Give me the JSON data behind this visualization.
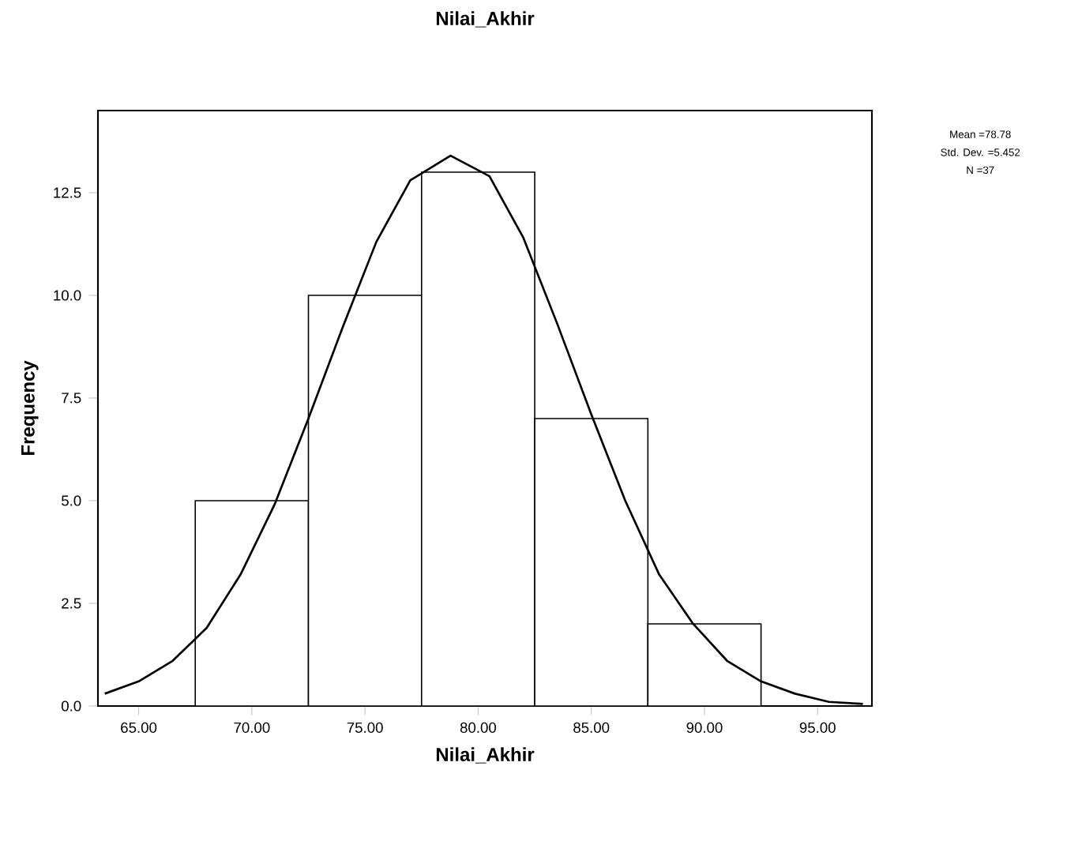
{
  "chart_data": {
    "type": "histogram",
    "title": "Nilai_Akhir",
    "xlabel": "Nilai_Akhir",
    "ylabel": "Frequency",
    "bins": [
      67.5,
      72.5,
      77.5,
      82.5,
      87.5,
      92.5
    ],
    "values": [
      5,
      10,
      13,
      7,
      2
    ],
    "color": "#ffffff",
    "series": [
      {
        "type": "line",
        "color": "#000000",
        "x": [
          63.5,
          65,
          66.5,
          68,
          69.5,
          71,
          72.5,
          74,
          75.5,
          77,
          78.78,
          80.5,
          82,
          83.5,
          85,
          86.5,
          88,
          89.5,
          91,
          92.5,
          94,
          95.5,
          97
        ],
        "values": [
          0.3,
          0.6,
          1.1,
          1.9,
          3.2,
          4.9,
          7.0,
          9.2,
          11.3,
          12.8,
          13.4,
          12.9,
          11.4,
          9.3,
          7.1,
          5.0,
          3.2,
          2.0,
          1.1,
          0.6,
          0.3,
          0.1,
          0.05
        ]
      }
    ],
    "xlim": [
      63.2,
      97.4
    ],
    "ylim": [
      0,
      14.5
    ],
    "xticks": [
      {
        "value": 65,
        "label": "65.00"
      },
      {
        "value": 70,
        "label": "70.00"
      },
      {
        "value": 75,
        "label": "75.00"
      },
      {
        "value": 80,
        "label": "80.00"
      },
      {
        "value": 85,
        "label": "85.00"
      },
      {
        "value": 90,
        "label": "90.00"
      },
      {
        "value": 95,
        "label": "95.00"
      }
    ],
    "yticks": [
      {
        "value": 0,
        "label": "0.0"
      },
      {
        "value": 2.5,
        "label": "2.5"
      },
      {
        "value": 5,
        "label": "5.0"
      },
      {
        "value": 7.5,
        "label": "7.5"
      },
      {
        "value": 10,
        "label": "10.0"
      },
      {
        "value": 12.5,
        "label": "12.5"
      }
    ],
    "annotations": [
      "Mean =78.78",
      "Std. Dev. =5.452",
      "N =37"
    ]
  }
}
